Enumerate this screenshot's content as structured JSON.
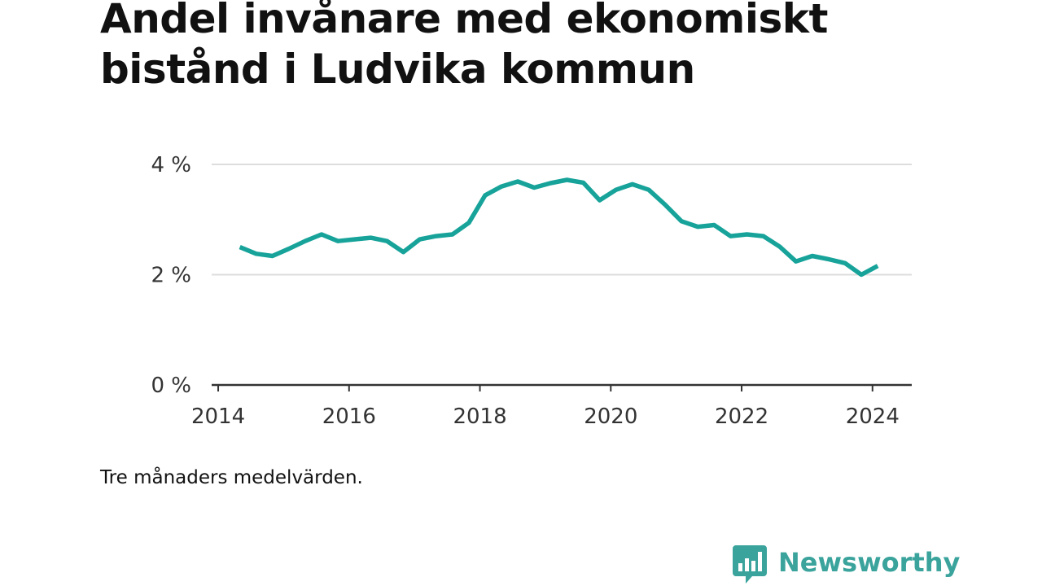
{
  "title": "Andel invånare med ekonomiskt bistånd i Ludvika kommun",
  "note": "Tre månaders medelvärden.",
  "brand": {
    "name": "Newsworthy",
    "icon": "newsworthy-logo-icon",
    "color": "#3aa39c"
  },
  "colors": {
    "line": "#17a39a",
    "grid": "#dddddd",
    "axis": "#333333"
  },
  "chart_data": {
    "type": "line",
    "title": "Andel invånare med ekonomiskt bistånd i Ludvika kommun",
    "xlabel": "",
    "ylabel": "",
    "xlim": [
      2013.9,
      2024.6
    ],
    "ylim": [
      0,
      4
    ],
    "x_ticks": [
      {
        "value": 2014,
        "label": "2014"
      },
      {
        "value": 2016,
        "label": "2016"
      },
      {
        "value": 2018,
        "label": "2018"
      },
      {
        "value": 2020,
        "label": "2020"
      },
      {
        "value": 2022,
        "label": "2022"
      },
      {
        "value": 2024,
        "label": "2024"
      }
    ],
    "y_ticks": [
      {
        "value": 0,
        "label": "0 %"
      },
      {
        "value": 2,
        "label": "2 %"
      },
      {
        "value": 4,
        "label": "4 %"
      }
    ],
    "grid": true,
    "legend": "none",
    "series": [
      {
        "x": [
          "2014-05",
          "2014-08",
          "2014-11",
          "2015-02",
          "2015-05",
          "2015-08",
          "2015-11",
          "2016-02",
          "2016-05",
          "2016-08",
          "2016-11",
          "2017-02",
          "2017-05",
          "2017-08",
          "2017-11",
          "2018-02",
          "2018-05",
          "2018-08",
          "2018-11",
          "2019-02",
          "2019-05",
          "2019-08",
          "2019-11",
          "2020-02",
          "2020-05",
          "2020-08",
          "2020-11",
          "2021-02",
          "2021-05",
          "2021-08",
          "2021-11",
          "2022-02",
          "2022-05",
          "2022-08",
          "2022-11",
          "2023-02",
          "2023-05",
          "2023-08",
          "2023-11",
          "2024-02"
        ],
        "x_num": [
          2014.33,
          2014.58,
          2014.83,
          2015.08,
          2015.33,
          2015.58,
          2015.83,
          2016.08,
          2016.33,
          2016.58,
          2016.83,
          2017.08,
          2017.33,
          2017.58,
          2017.83,
          2018.08,
          2018.33,
          2018.58,
          2018.83,
          2019.08,
          2019.33,
          2019.58,
          2019.83,
          2020.08,
          2020.33,
          2020.58,
          2020.83,
          2021.08,
          2021.33,
          2021.58,
          2021.83,
          2022.08,
          2022.33,
          2022.58,
          2022.83,
          2023.08,
          2023.33,
          2023.58,
          2023.83,
          2024.08
        ],
        "values": [
          2.5,
          2.38,
          2.34,
          2.47,
          2.61,
          2.73,
          2.61,
          2.64,
          2.67,
          2.61,
          2.41,
          2.64,
          2.7,
          2.73,
          2.94,
          3.44,
          3.6,
          3.69,
          3.58,
          3.66,
          3.72,
          3.67,
          3.35,
          3.54,
          3.64,
          3.54,
          3.27,
          2.97,
          2.87,
          2.9,
          2.7,
          2.73,
          2.7,
          2.51,
          2.24,
          2.34,
          2.28,
          2.21,
          2.0,
          2.16
        ]
      }
    ]
  }
}
